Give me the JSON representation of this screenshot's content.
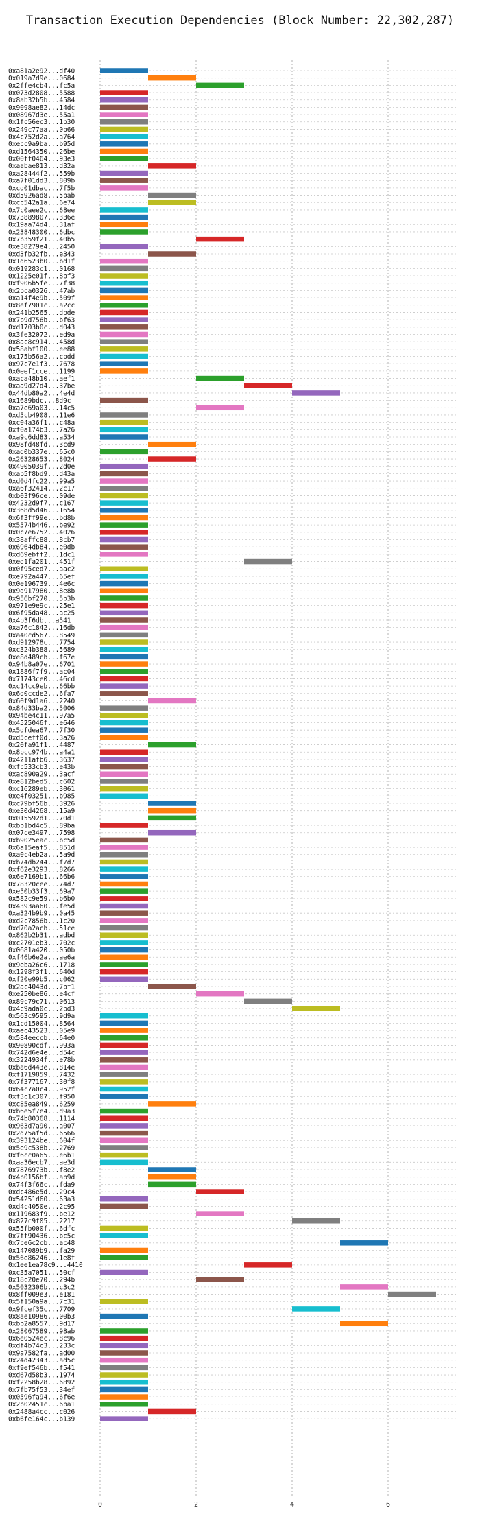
{
  "chart_data": {
    "type": "bar",
    "orientation": "horizontal-gantt",
    "title": "Transaction Execution Dependencies (Block Number: 22,302,287)",
    "xlabel": "",
    "ylabel": "",
    "xlim": [
      0,
      7.5
    ],
    "xticks": [
      0,
      2,
      4,
      6
    ],
    "grid": true,
    "legend": "none",
    "palette": [
      "#1f77b4",
      "#ff7f0e",
      "#2ca02c",
      "#d62728",
      "#9467bd",
      "#8c564b",
      "#e377c2",
      "#7f7f7f",
      "#bcbd22",
      "#17becf"
    ],
    "transactions": [
      {
        "label": "0xa81a2e92...df40",
        "start": 0,
        "end": 1
      },
      {
        "label": "0x019a7d9e...0684",
        "start": 1,
        "end": 2
      },
      {
        "label": "0x2ffe4cb4...fc5a",
        "start": 2,
        "end": 3
      },
      {
        "label": "0x073d2808...5588",
        "start": 0,
        "end": 1
      },
      {
        "label": "0x8ab32b5b...4584",
        "start": 0,
        "end": 1
      },
      {
        "label": "0x9098ae82...14dc",
        "start": 0,
        "end": 1
      },
      {
        "label": "0x08967d3e...55a1",
        "start": 0,
        "end": 1
      },
      {
        "label": "0x1fc56ec3...1b30",
        "start": 0,
        "end": 1
      },
      {
        "label": "0x249c77aa...0b66",
        "start": 0,
        "end": 1
      },
      {
        "label": "0x4c752d2a...a764",
        "start": 0,
        "end": 1
      },
      {
        "label": "0xecc9a9ba...b95d",
        "start": 0,
        "end": 1
      },
      {
        "label": "0xd1564350...26be",
        "start": 0,
        "end": 1
      },
      {
        "label": "0x00ff0464...93e3",
        "start": 0,
        "end": 1
      },
      {
        "label": "0xaabae813...d32a",
        "start": 1,
        "end": 2
      },
      {
        "label": "0xa28444f2...559b",
        "start": 0,
        "end": 1
      },
      {
        "label": "0xa7f01dd3...809b",
        "start": 0,
        "end": 1
      },
      {
        "label": "0xcd01dbac...7f5b",
        "start": 0,
        "end": 1
      },
      {
        "label": "0xd5926ad8...5bab",
        "start": 1,
        "end": 2
      },
      {
        "label": "0xcc542a1a...6e74",
        "start": 1,
        "end": 2
      },
      {
        "label": "0x7c0aee2c...68ee",
        "start": 0,
        "end": 1
      },
      {
        "label": "0x73889807...336e",
        "start": 0,
        "end": 1
      },
      {
        "label": "0x19aa74d4...31af",
        "start": 0,
        "end": 1
      },
      {
        "label": "0x23848300...6dbc",
        "start": 0,
        "end": 1
      },
      {
        "label": "0x7b359f21...40b5",
        "start": 2,
        "end": 3
      },
      {
        "label": "0xe38279e4...2450",
        "start": 0,
        "end": 1
      },
      {
        "label": "0xd3fb32fb...e343",
        "start": 1,
        "end": 2
      },
      {
        "label": "0x1d6523b0...bd1f",
        "start": 0,
        "end": 1
      },
      {
        "label": "0x019283c1...0168",
        "start": 0,
        "end": 1
      },
      {
        "label": "0x1225e01f...8bf3",
        "start": 0,
        "end": 1
      },
      {
        "label": "0xf906b5fe...7f38",
        "start": 0,
        "end": 1
      },
      {
        "label": "0x2bca0326...47ab",
        "start": 0,
        "end": 1
      },
      {
        "label": "0xa14f4e9b...509f",
        "start": 0,
        "end": 1
      },
      {
        "label": "0x8ef7901c...a2cc",
        "start": 0,
        "end": 1
      },
      {
        "label": "0x241b2565...dbde",
        "start": 0,
        "end": 1
      },
      {
        "label": "0x7b9d756b...bf63",
        "start": 0,
        "end": 1
      },
      {
        "label": "0xd1703b0c...d043",
        "start": 0,
        "end": 1
      },
      {
        "label": "0x3fe32072...ed9a",
        "start": 0,
        "end": 1
      },
      {
        "label": "0x8ac8c914...458d",
        "start": 0,
        "end": 1
      },
      {
        "label": "0x58abf100...ee88",
        "start": 0,
        "end": 1
      },
      {
        "label": "0x175b56a2...cbdd",
        "start": 0,
        "end": 1
      },
      {
        "label": "0x97c7e1f3...7678",
        "start": 0,
        "end": 1
      },
      {
        "label": "0x0eef1cce...1199",
        "start": 0,
        "end": 1
      },
      {
        "label": "0xaca48b10...aef1",
        "start": 2,
        "end": 3
      },
      {
        "label": "0xaa9d27d4...37be",
        "start": 3,
        "end": 4
      },
      {
        "label": "0x44db80a2...4e4d",
        "start": 4,
        "end": 5
      },
      {
        "label": "0x1689bdc...8d9c",
        "start": 0,
        "end": 1
      },
      {
        "label": "0xa7e69a03...14c5",
        "start": 2,
        "end": 3
      },
      {
        "label": "0xd5cb4908...11e6",
        "start": 0,
        "end": 1
      },
      {
        "label": "0xc04a36f1...c48a",
        "start": 0,
        "end": 1
      },
      {
        "label": "0xf0a174b3...7a26",
        "start": 0,
        "end": 1
      },
      {
        "label": "0xa9c6dd83...a534",
        "start": 0,
        "end": 1
      },
      {
        "label": "0x98fd48fd...3cd9",
        "start": 1,
        "end": 2
      },
      {
        "label": "0xad0b337e...65c0",
        "start": 0,
        "end": 1
      },
      {
        "label": "0x26328653...8024",
        "start": 1,
        "end": 2
      },
      {
        "label": "0x4905039f...2d0e",
        "start": 0,
        "end": 1
      },
      {
        "label": "0xab5f8bd9...d43a",
        "start": 0,
        "end": 1
      },
      {
        "label": "0xd0d4fc22...99a5",
        "start": 0,
        "end": 1
      },
      {
        "label": "0xa6f32414...2c17",
        "start": 0,
        "end": 1
      },
      {
        "label": "0xb03f96ce...09de",
        "start": 0,
        "end": 1
      },
      {
        "label": "0x4232d9f7...c167",
        "start": 0,
        "end": 1
      },
      {
        "label": "0x368d5d46...1654",
        "start": 0,
        "end": 1
      },
      {
        "label": "0x6f3ff99e...bd8b",
        "start": 0,
        "end": 1
      },
      {
        "label": "0x5574b446...be92",
        "start": 0,
        "end": 1
      },
      {
        "label": "0x0c7e6752...4026",
        "start": 0,
        "end": 1
      },
      {
        "label": "0x38affc88...8cb7",
        "start": 0,
        "end": 1
      },
      {
        "label": "0x6964db84...e0db",
        "start": 0,
        "end": 1
      },
      {
        "label": "0xd69ebff2...1dc1",
        "start": 0,
        "end": 1
      },
      {
        "label": "0xed1fa201...451f",
        "start": 3,
        "end": 4
      },
      {
        "label": "0x0f95ced7...aac2",
        "start": 0,
        "end": 1
      },
      {
        "label": "0xe792a447...65ef",
        "start": 0,
        "end": 1
      },
      {
        "label": "0x0e196739...4e6c",
        "start": 0,
        "end": 1
      },
      {
        "label": "0x9d917980...8e8b",
        "start": 0,
        "end": 1
      },
      {
        "label": "0x956bf270...5b3b",
        "start": 0,
        "end": 1
      },
      {
        "label": "0x971e9e9c...25e1",
        "start": 0,
        "end": 1
      },
      {
        "label": "0x6f95da48...ac25",
        "start": 0,
        "end": 1
      },
      {
        "label": "0x4b3f6db...a541",
        "start": 0,
        "end": 1
      },
      {
        "label": "0xa76c1842...16db",
        "start": 0,
        "end": 1
      },
      {
        "label": "0xa40cd567...8549",
        "start": 0,
        "end": 1
      },
      {
        "label": "0xd912978c...7754",
        "start": 0,
        "end": 1
      },
      {
        "label": "0xc324b388...5689",
        "start": 0,
        "end": 1
      },
      {
        "label": "0xe8d489cb...f67e",
        "start": 0,
        "end": 1
      },
      {
        "label": "0x94b8a07e...6701",
        "start": 0,
        "end": 1
      },
      {
        "label": "0x1886f7f9...ac04",
        "start": 0,
        "end": 1
      },
      {
        "label": "0x71743ce0...46cd",
        "start": 0,
        "end": 1
      },
      {
        "label": "0xc14cc9eb...66bb",
        "start": 0,
        "end": 1
      },
      {
        "label": "0x6d0ccde2...6fa7",
        "start": 0,
        "end": 1
      },
      {
        "label": "0x60f9d1a6...2240",
        "start": 1,
        "end": 2
      },
      {
        "label": "0x84d33ba2...5006",
        "start": 0,
        "end": 1
      },
      {
        "label": "0x94be4c11...97a5",
        "start": 0,
        "end": 1
      },
      {
        "label": "0x4525046f...e646",
        "start": 0,
        "end": 1
      },
      {
        "label": "0x5dfdea67...7f30",
        "start": 0,
        "end": 1
      },
      {
        "label": "0xd5ceff0d...3a26",
        "start": 0,
        "end": 1
      },
      {
        "label": "0x20fa91f1...4487",
        "start": 1,
        "end": 2
      },
      {
        "label": "0x8bcc974b...a4a1",
        "start": 0,
        "end": 1
      },
      {
        "label": "0x4211afb6...3637",
        "start": 0,
        "end": 1
      },
      {
        "label": "0xfc533cb3...e43b",
        "start": 0,
        "end": 1
      },
      {
        "label": "0xac890a29...3acf",
        "start": 0,
        "end": 1
      },
      {
        "label": "0xe812bed5...c602",
        "start": 0,
        "end": 1
      },
      {
        "label": "0xc16289eb...3061",
        "start": 0,
        "end": 1
      },
      {
        "label": "0xe4f03251...b985",
        "start": 0,
        "end": 1
      },
      {
        "label": "0xc79bf56b...3926",
        "start": 1,
        "end": 2
      },
      {
        "label": "0xe30d4268...15a9",
        "start": 1,
        "end": 2
      },
      {
        "label": "0x015592d1...70d1",
        "start": 1,
        "end": 2
      },
      {
        "label": "0xbb1bd4c5...89ba",
        "start": 0,
        "end": 1
      },
      {
        "label": "0x07ce3497...7598",
        "start": 1,
        "end": 2
      },
      {
        "label": "0xb9025eac...bc5d",
        "start": 0,
        "end": 1
      },
      {
        "label": "0x6a15eaf5...851d",
        "start": 0,
        "end": 1
      },
      {
        "label": "0xa0c4eb2a...5a9d",
        "start": 0,
        "end": 1
      },
      {
        "label": "0xb74db244...f7d7",
        "start": 0,
        "end": 1
      },
      {
        "label": "0xf62e3293...8266",
        "start": 0,
        "end": 1
      },
      {
        "label": "0x6e7169b1...66b6",
        "start": 0,
        "end": 1
      },
      {
        "label": "0x78320cee...74d7",
        "start": 0,
        "end": 1
      },
      {
        "label": "0xe50b33f3...69a7",
        "start": 0,
        "end": 1
      },
      {
        "label": "0x582c9e59...b6b0",
        "start": 0,
        "end": 1
      },
      {
        "label": "0x4393aa60...fe5d",
        "start": 0,
        "end": 1
      },
      {
        "label": "0xa324b9b9...0a45",
        "start": 0,
        "end": 1
      },
      {
        "label": "0xd2c7856b...1c20",
        "start": 0,
        "end": 1
      },
      {
        "label": "0xd70a2acb...51ce",
        "start": 0,
        "end": 1
      },
      {
        "label": "0x862b2b31...adbd",
        "start": 0,
        "end": 1
      },
      {
        "label": "0xc2701eb3...702c",
        "start": 0,
        "end": 1
      },
      {
        "label": "0x0681a420...050b",
        "start": 0,
        "end": 1
      },
      {
        "label": "0xf46b6e2a...ae6a",
        "start": 0,
        "end": 1
      },
      {
        "label": "0x9eba26c6...1718",
        "start": 0,
        "end": 1
      },
      {
        "label": "0x1298f3f1...640d",
        "start": 0,
        "end": 1
      },
      {
        "label": "0xf20e99b5...c062",
        "start": 0,
        "end": 1
      },
      {
        "label": "0x2ac4043d...7bf1",
        "start": 1,
        "end": 2
      },
      {
        "label": "0xe250be86...e4cf",
        "start": 2,
        "end": 3
      },
      {
        "label": "0x89c79c71...0613",
        "start": 3,
        "end": 4
      },
      {
        "label": "0x4c9ada0c...2bd3",
        "start": 4,
        "end": 5
      },
      {
        "label": "0x563c9595...9d9a",
        "start": 0,
        "end": 1
      },
      {
        "label": "0x1cd15004...8564",
        "start": 0,
        "end": 1
      },
      {
        "label": "0xaec43523...05e9",
        "start": 0,
        "end": 1
      },
      {
        "label": "0x584eeccb...64e0",
        "start": 0,
        "end": 1
      },
      {
        "label": "0x90890cdf...993a",
        "start": 0,
        "end": 1
      },
      {
        "label": "0x742d6e4e...d54c",
        "start": 0,
        "end": 1
      },
      {
        "label": "0x3224934f...e78b",
        "start": 0,
        "end": 1
      },
      {
        "label": "0xba6d443e...814e",
        "start": 0,
        "end": 1
      },
      {
        "label": "0xf1719859...7432",
        "start": 0,
        "end": 1
      },
      {
        "label": "0x7f377167...30f8",
        "start": 0,
        "end": 1
      },
      {
        "label": "0x64c7a0c4...952f",
        "start": 0,
        "end": 1
      },
      {
        "label": "0xf3c1c307...f950",
        "start": 0,
        "end": 1
      },
      {
        "label": "0xc85ea849...6259",
        "start": 1,
        "end": 2
      },
      {
        "label": "0xb6e5f7e4...d9a3",
        "start": 0,
        "end": 1
      },
      {
        "label": "0x74b80368...1114",
        "start": 0,
        "end": 1
      },
      {
        "label": "0x963d7a90...a007",
        "start": 0,
        "end": 1
      },
      {
        "label": "0x2d75af5d...6566",
        "start": 0,
        "end": 1
      },
      {
        "label": "0x393124be...604f",
        "start": 0,
        "end": 1
      },
      {
        "label": "0x5e9c538b...2769",
        "start": 0,
        "end": 1
      },
      {
        "label": "0xf6cc0a65...e6b1",
        "start": 0,
        "end": 1
      },
      {
        "label": "0xaa36ecb7...ae3d",
        "start": 0,
        "end": 1
      },
      {
        "label": "0x7876973b...f8e2",
        "start": 1,
        "end": 2
      },
      {
        "label": "0x4b0156bf...ab9d",
        "start": 1,
        "end": 2
      },
      {
        "label": "0x74f3f66c...fda9",
        "start": 1,
        "end": 2
      },
      {
        "label": "0xdc486e5d...29c4",
        "start": 2,
        "end": 3
      },
      {
        "label": "0x54251d60...63a3",
        "start": 0,
        "end": 1
      },
      {
        "label": "0xd4c4050e...2c95",
        "start": 0,
        "end": 1
      },
      {
        "label": "0x119683f9...be12",
        "start": 2,
        "end": 3
      },
      {
        "label": "0x827c9f05...2217",
        "start": 4,
        "end": 5
      },
      {
        "label": "0x55fb000f...6dfc",
        "start": 0,
        "end": 1
      },
      {
        "label": "0x7ff90436...bc5c",
        "start": 0,
        "end": 1
      },
      {
        "label": "0x7ce6c2cb...ac48",
        "start": 5,
        "end": 6
      },
      {
        "label": "0x147089b9...fa29",
        "start": 0,
        "end": 1
      },
      {
        "label": "0x56e86246...1e8f",
        "start": 0,
        "end": 1
      },
      {
        "label": "0x1ee1ea78c9...4410",
        "start": 3,
        "end": 4
      },
      {
        "label": "0xc35a7051...50cf",
        "start": 0,
        "end": 1
      },
      {
        "label": "0x18c20e70...294b",
        "start": 2,
        "end": 3
      },
      {
        "label": "0x5032306b...c3c2",
        "start": 5,
        "end": 6
      },
      {
        "label": "0x8ff009e3...e181",
        "start": 6,
        "end": 7
      },
      {
        "label": "0x5f150a9a...7c31",
        "start": 0,
        "end": 1
      },
      {
        "label": "0x9fcef35c...7709",
        "start": 4,
        "end": 5
      },
      {
        "label": "0x8ae10986...00b3",
        "start": 0,
        "end": 1
      },
      {
        "label": "0xbb2a8557...9d17",
        "start": 5,
        "end": 6
      },
      {
        "label": "0x28067589...98ab",
        "start": 0,
        "end": 1
      },
      {
        "label": "0x6e0524ec...8c96",
        "start": 0,
        "end": 1
      },
      {
        "label": "0xdf4b74c3...233c",
        "start": 0,
        "end": 1
      },
      {
        "label": "0x9a7582fa...ad00",
        "start": 0,
        "end": 1
      },
      {
        "label": "0x24d42343...ad5c",
        "start": 0,
        "end": 1
      },
      {
        "label": "0xf9ef546b...f541",
        "start": 0,
        "end": 1
      },
      {
        "label": "0xd67d58b3...1974",
        "start": 0,
        "end": 1
      },
      {
        "label": "0xf2258b28...6892",
        "start": 0,
        "end": 1
      },
      {
        "label": "0x7fb75f53...34ef",
        "start": 0,
        "end": 1
      },
      {
        "label": "0x0596fa94...6f6e",
        "start": 0,
        "end": 1
      },
      {
        "label": "0x2b02451c...6ba1",
        "start": 0,
        "end": 1
      },
      {
        "label": "0x2488a4cc...c026",
        "start": 1,
        "end": 2
      },
      {
        "label": "0xb6fe164c...b139",
        "start": 0,
        "end": 1
      }
    ]
  }
}
